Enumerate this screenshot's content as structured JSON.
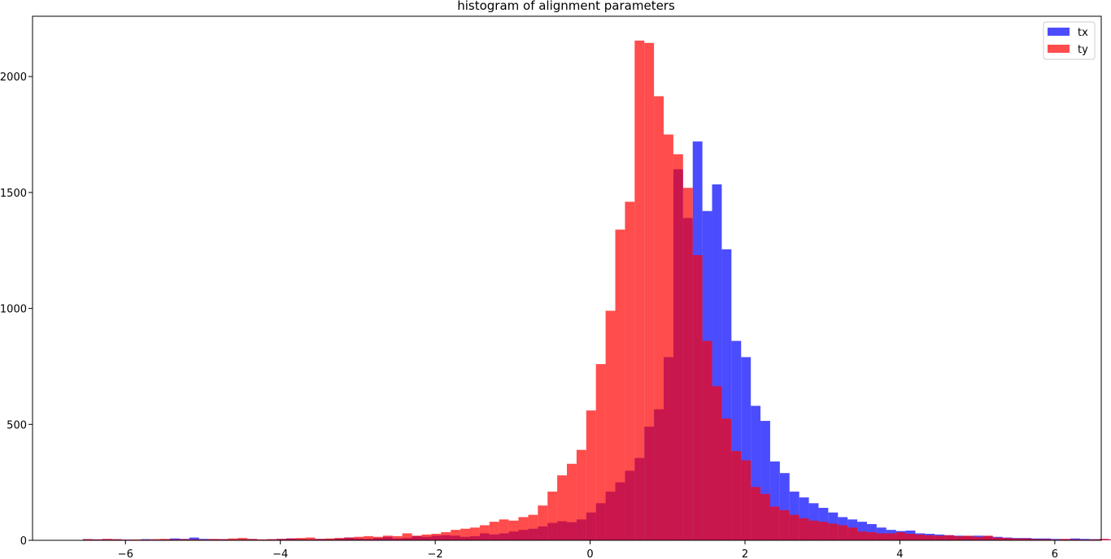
{
  "chart_data": {
    "type": "bar",
    "title": "histogram of alignment parameters",
    "xlabel": "",
    "ylabel": "",
    "xlim": [
      -7.2,
      6.6
    ],
    "ylim": [
      0,
      2260
    ],
    "xticks": [
      -6,
      -4,
      -2,
      0,
      2,
      4,
      6
    ],
    "xtick_labels": [
      "−6",
      "−4",
      "−2",
      "0",
      "2",
      "4",
      "6"
    ],
    "yticks": [
      0,
      500,
      1000,
      1500,
      2000
    ],
    "ytick_labels": [
      "0",
      "500",
      "1000",
      "1500",
      "2000"
    ],
    "grid": false,
    "legend_position": "top-right",
    "bins": {
      "x_start": -6.55,
      "bin_width": 0.125,
      "series": [
        {
          "name": "tx",
          "color": "#0000ff",
          "opacity": 0.7,
          "values": [
            5,
            4,
            5,
            4,
            3,
            2,
            5,
            3,
            4,
            8,
            6,
            12,
            6,
            4,
            5,
            3,
            4,
            5,
            3,
            4,
            6,
            8,
            5,
            4,
            6,
            5,
            8,
            12,
            8,
            6,
            10,
            15,
            8,
            10,
            18,
            15,
            20,
            22,
            20,
            15,
            18,
            30,
            25,
            30,
            38,
            45,
            50,
            60,
            75,
            82,
            78,
            90,
            120,
            160,
            210,
            250,
            300,
            355,
            490,
            565,
            790,
            1600,
            1390,
            1720,
            1420,
            1535,
            1255,
            860,
            790,
            580,
            515,
            340,
            290,
            210,
            185,
            160,
            140,
            120,
            100,
            90,
            80,
            70,
            55,
            45,
            40,
            42,
            30,
            28,
            25,
            22,
            20,
            18,
            20,
            18,
            15,
            12,
            10,
            10,
            8,
            8,
            6,
            5,
            8,
            6,
            5,
            5,
            4,
            3,
            4
          ]
        },
        {
          "name": "ty",
          "color": "#ff0000",
          "opacity": 0.7,
          "values": [
            5,
            4,
            6,
            5,
            3,
            4,
            3,
            5,
            6,
            4,
            5,
            4,
            3,
            6,
            5,
            8,
            10,
            6,
            4,
            5,
            6,
            8,
            10,
            12,
            6,
            8,
            10,
            12,
            15,
            18,
            15,
            20,
            18,
            30,
            20,
            25,
            28,
            35,
            45,
            50,
            55,
            65,
            80,
            90,
            85,
            100,
            110,
            150,
            210,
            280,
            330,
            390,
            560,
            760,
            990,
            1340,
            1460,
            2155,
            2145,
            1915,
            1750,
            1665,
            1520,
            1230,
            860,
            665,
            525,
            385,
            345,
            230,
            200,
            145,
            130,
            110,
            95,
            85,
            80,
            72,
            65,
            55,
            38,
            35,
            30,
            30,
            35,
            28,
            25,
            22,
            20,
            22,
            18,
            20,
            15,
            20,
            12,
            10,
            8,
            8,
            5,
            5,
            3,
            6,
            4,
            3,
            4,
            6,
            3,
            5,
            3,
            5
          ]
        }
      ]
    }
  }
}
